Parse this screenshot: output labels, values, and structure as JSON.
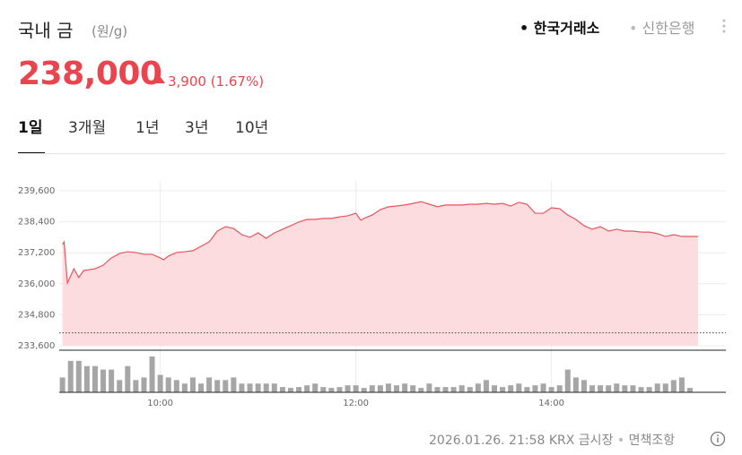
{
  "header": {
    "title": "국내 금",
    "unit": "(원/g)",
    "sources": [
      "한국거래소",
      "신한은행"
    ],
    "price": "238,000",
    "change": "3,900 (1.67%)"
  },
  "tabs": [
    "1일",
    "3개월",
    "1년",
    "3년",
    "10년"
  ],
  "footer": {
    "timestamp": "2026.01.26. 21:58 KRX 금시장",
    "disclaimer": "면책조항"
  },
  "chart_data": {
    "type": "line",
    "color": "#e8545c",
    "fill": "#fddcdf",
    "grid": true,
    "xlim": [
      "08:58",
      "15:47"
    ],
    "xticks": [
      "10:00",
      "12:00",
      "14:00"
    ],
    "ylim": [
      233600,
      239600
    ],
    "yticks": [
      {
        "value": 239600,
        "label": "239,600"
      },
      {
        "value": 238400,
        "label": "238,400"
      },
      {
        "value": 237200,
        "label": "237,200"
      },
      {
        "value": 236000,
        "label": "236,000"
      },
      {
        "value": 234800,
        "label": "234,800"
      },
      {
        "value": 233600,
        "label": "233,600"
      }
    ],
    "base_value": 234100,
    "x": [
      "09:00",
      "09:01",
      "09:03",
      "09:07",
      "09:10",
      "09:13",
      "09:20",
      "09:25",
      "09:30",
      "09:35",
      "09:40",
      "09:45",
      "09:50",
      "09:55",
      "10:00",
      "10:02",
      "10:05",
      "10:10",
      "10:15",
      "10:20",
      "10:25",
      "10:30",
      "10:35",
      "10:40",
      "10:45",
      "10:50",
      "10:55",
      "11:00",
      "11:05",
      "11:10",
      "11:15",
      "11:20",
      "11:25",
      "11:30",
      "11:35",
      "11:40",
      "11:45",
      "11:50",
      "11:55",
      "12:00",
      "12:03",
      "12:05",
      "12:10",
      "12:15",
      "12:20",
      "12:25",
      "12:30",
      "12:35",
      "12:40",
      "12:45",
      "12:50",
      "12:55",
      "13:00",
      "13:05",
      "13:10",
      "13:15",
      "13:20",
      "13:25",
      "13:30",
      "13:35",
      "13:40",
      "13:45",
      "13:50",
      "13:55",
      "14:00",
      "14:05",
      "14:10",
      "14:15",
      "14:20",
      "14:25",
      "14:30",
      "14:35",
      "14:40",
      "14:45",
      "14:50",
      "14:55",
      "15:00",
      "15:05",
      "15:10",
      "15:15",
      "15:20",
      "15:25",
      "15:30"
    ],
    "values": [
      237520,
      237620,
      236030,
      236580,
      236240,
      236510,
      236580,
      236720,
      237000,
      237170,
      237240,
      237210,
      237140,
      237140,
      237000,
      236930,
      237070,
      237210,
      237240,
      237280,
      237450,
      237620,
      238040,
      238210,
      238140,
      237900,
      237800,
      237970,
      237760,
      237970,
      238110,
      238250,
      238390,
      238490,
      238490,
      238530,
      238530,
      238590,
      238630,
      238730,
      238460,
      238530,
      238660,
      238870,
      238980,
      239010,
      239050,
      239110,
      239180,
      239080,
      238980,
      239050,
      239050,
      239050,
      239080,
      239080,
      239110,
      239080,
      239110,
      239010,
      239150,
      239080,
      238730,
      238730,
      238940,
      238910,
      238660,
      238490,
      238250,
      238110,
      238210,
      238040,
      238110,
      238040,
      238040,
      238000,
      238000,
      237940,
      237830,
      237900,
      237830,
      237830,
      237830
    ],
    "volume": {
      "color": "#a6a6a6",
      "x": [
        "09:00",
        "09:05",
        "09:10",
        "09:15",
        "09:20",
        "09:25",
        "09:30",
        "09:35",
        "09:40",
        "09:45",
        "09:50",
        "09:55",
        "10:00",
        "10:05",
        "10:10",
        "10:15",
        "10:20",
        "10:25",
        "10:30",
        "10:35",
        "10:40",
        "10:45",
        "10:50",
        "10:55",
        "11:00",
        "11:05",
        "11:10",
        "11:15",
        "11:20",
        "11:25",
        "11:30",
        "11:35",
        "11:40",
        "11:45",
        "11:50",
        "11:55",
        "12:00",
        "12:05",
        "12:10",
        "12:15",
        "12:20",
        "12:25",
        "12:30",
        "12:35",
        "12:40",
        "12:45",
        "12:50",
        "12:55",
        "13:00",
        "13:05",
        "13:10",
        "13:15",
        "13:20",
        "13:25",
        "13:30",
        "13:35",
        "13:40",
        "13:45",
        "13:50",
        "13:55",
        "14:00",
        "14:05",
        "14:10",
        "14:15",
        "14:20",
        "14:25",
        "14:30",
        "14:35",
        "14:40",
        "14:45",
        "14:50",
        "14:55",
        "15:00",
        "15:05",
        "15:10",
        "15:15",
        "15:20",
        "15:25"
      ],
      "values": [
        17,
        36,
        36,
        30,
        30,
        26,
        26,
        14,
        30,
        14,
        17,
        41,
        20,
        17,
        14,
        10,
        17,
        10,
        17,
        14,
        14,
        17,
        10,
        10,
        10,
        10,
        10,
        6,
        5,
        6,
        8,
        10,
        6,
        5,
        6,
        8,
        8,
        5,
        8,
        8,
        10,
        8,
        10,
        8,
        5,
        10,
        6,
        6,
        6,
        8,
        6,
        10,
        14,
        8,
        6,
        8,
        10,
        6,
        8,
        10,
        6,
        8,
        26,
        17,
        14,
        8,
        8,
        8,
        10,
        8,
        8,
        6,
        6,
        10,
        10,
        14,
        17,
        5
      ]
    }
  }
}
